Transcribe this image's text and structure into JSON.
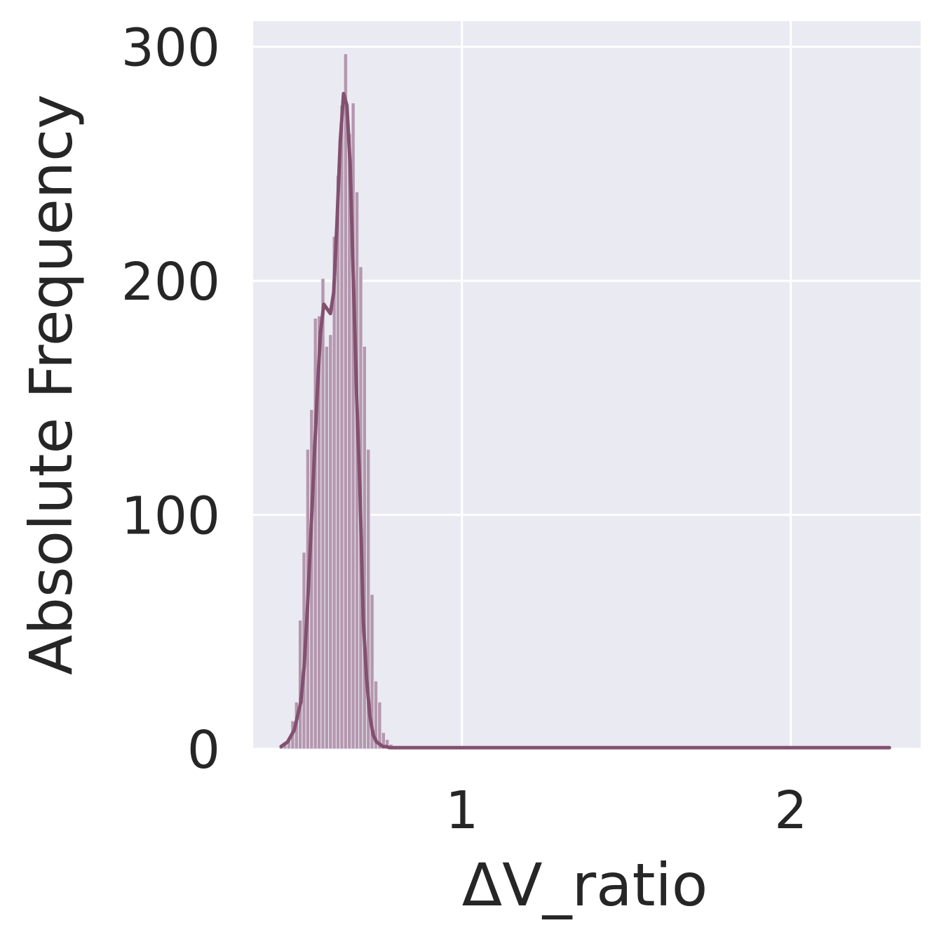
{
  "chart_data": {
    "type": "histogram",
    "title": "",
    "xlabel": "ΔV_ratio",
    "ylabel": "Absolute Frequency",
    "xlim": [
      0.365,
      2.395
    ],
    "ylim": [
      0,
      311
    ],
    "xticks": [
      1,
      2
    ],
    "yticks": [
      0,
      100,
      200,
      300
    ],
    "x_tick_labels": [
      "1",
      "2"
    ],
    "y_tick_labels": [
      "0",
      "100",
      "200",
      "300"
    ],
    "grid": true,
    "legend": "none",
    "colors": {
      "background": "#eaeaf2",
      "grid": "#ffffff",
      "bar": "#b497ae",
      "kde_line": "#83506f"
    },
    "bins": {
      "start": 0.445,
      "width": 0.0115,
      "counts": [
        1,
        3,
        4,
        12,
        20,
        55,
        84,
        128,
        145,
        184,
        185,
        201,
        172,
        177,
        219,
        245,
        275,
        297,
        263,
        276,
        238,
        206,
        172,
        128,
        66,
        29,
        20,
        7,
        4,
        2,
        1,
        1,
        1,
        1
      ]
    },
    "kde": {
      "x": [
        0.45,
        0.47,
        0.49,
        0.51,
        0.52,
        0.53,
        0.54,
        0.55,
        0.56,
        0.57,
        0.58,
        0.59,
        0.6,
        0.61,
        0.62,
        0.63,
        0.64,
        0.65,
        0.66,
        0.67,
        0.68,
        0.69,
        0.7,
        0.71,
        0.72,
        0.73,
        0.74,
        0.75,
        0.76,
        0.77,
        0.78,
        0.79,
        0.8,
        0.81,
        0.82,
        0.83,
        0.84,
        0.85,
        0.86,
        0.87,
        0.88,
        0.89,
        0.9,
        0.91,
        0.92,
        0.94,
        0.96,
        0.98,
        1.0,
        1.05,
        1.1,
        1.2,
        1.35,
        1.5,
        1.65,
        1.8,
        2.0,
        2.2,
        2.3
      ],
      "y": [
        1,
        3,
        8,
        20,
        35,
        60,
        90,
        122,
        152,
        178,
        190,
        188,
        186,
        195,
        225,
        260,
        280,
        275,
        250,
        200,
        150,
        110,
        55,
        30,
        14,
        6,
        3,
        2,
        1,
        1,
        0.5,
        0.5,
        0.5,
        0.5,
        0.5,
        0.5,
        0.5,
        0.5,
        0.5,
        0.5,
        0.5,
        0.5,
        0.5,
        0.5,
        0.5,
        0.5,
        0.5,
        0.5,
        0.5,
        0.5,
        0.5,
        0.5,
        0.5,
        0.5,
        0.5,
        0.5,
        0.5,
        0.5,
        0.5
      ]
    }
  }
}
